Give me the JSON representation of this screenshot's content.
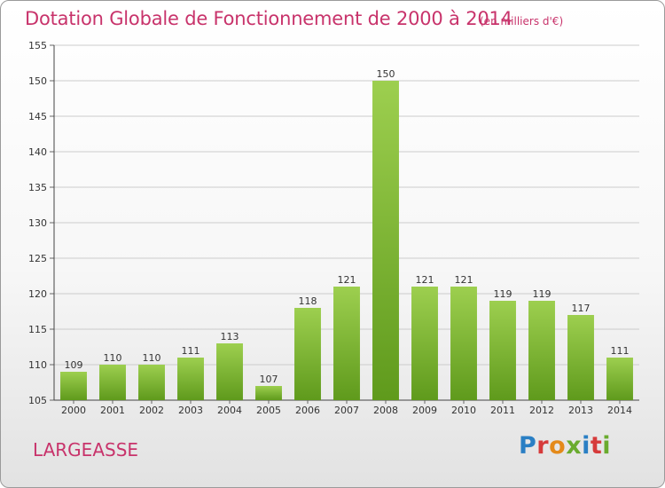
{
  "header": {
    "title": "Dotation Globale de Fonctionnement de 2000 à 2014",
    "unit": "(en milliers d'€)"
  },
  "footer": {
    "commune": "LARGEASSE",
    "brand": [
      "P",
      "r",
      "o",
      "x",
      "i",
      "t",
      "i"
    ]
  },
  "colors": {
    "bar_top": "#9dcf4f",
    "bar_bottom": "#5f9a1c",
    "title": "#c8336b",
    "grid": "#cccccc"
  },
  "chart_data": {
    "type": "bar",
    "title": "Dotation Globale de Fonctionnement de 2000 à 2014",
    "subtitle": "(en milliers d'€)",
    "xlabel": "",
    "ylabel": "",
    "categories": [
      "2000",
      "2001",
      "2002",
      "2003",
      "2004",
      "2005",
      "2006",
      "2007",
      "2008",
      "2009",
      "2010",
      "2011",
      "2012",
      "2013",
      "2014"
    ],
    "values": [
      109,
      110,
      110,
      111,
      113,
      107,
      118,
      121,
      150,
      121,
      121,
      119,
      119,
      117,
      111
    ],
    "ylim": [
      105,
      155
    ],
    "yticks": [
      105,
      110,
      115,
      120,
      125,
      130,
      135,
      140,
      145,
      150,
      155
    ],
    "grid": true,
    "legend": "none"
  }
}
